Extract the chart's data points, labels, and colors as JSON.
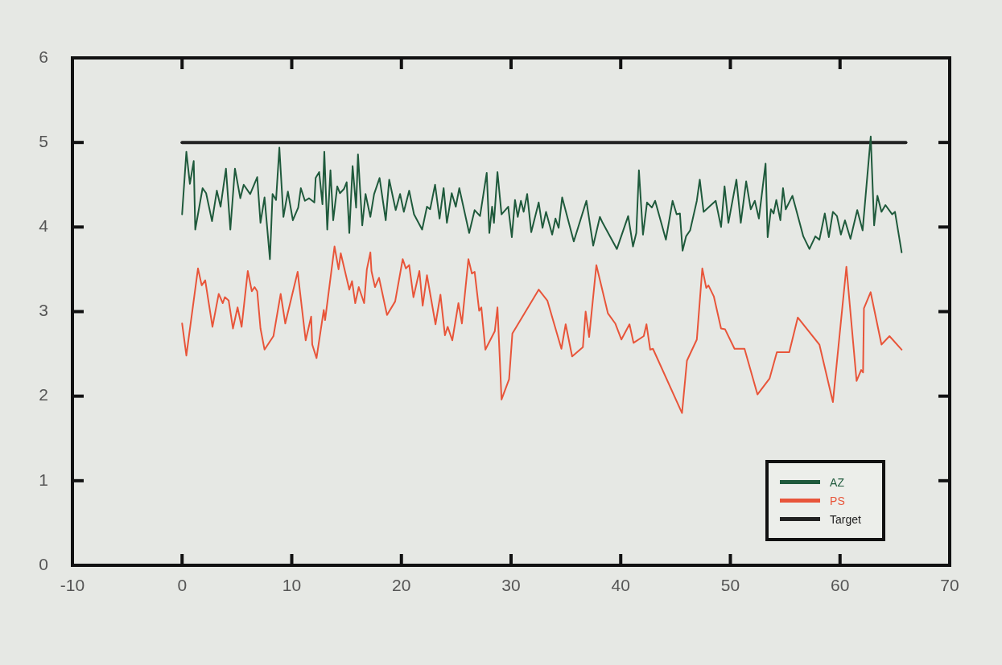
{
  "chart_data": {
    "type": "line",
    "xlim": [
      -10,
      70
    ],
    "xticks": [
      -10,
      0,
      10,
      20,
      30,
      40,
      50,
      60,
      70
    ],
    "ylim": [
      0,
      6
    ],
    "yticks": [
      0,
      1,
      2,
      3,
      4,
      5,
      6
    ],
    "grid": false,
    "legend": "bottom right",
    "marker": "none",
    "line_style": "solid",
    "series": [
      {
        "name": "AZ",
        "color": "#1f5a3c",
        "x": [
          0,
          0.39,
          0.71,
          1.06,
          1.2,
          1.87,
          2.19,
          2.73,
          3.17,
          3.51,
          4.0,
          4.4,
          4.82,
          5.31,
          5.62,
          6.21,
          6.85,
          7.15,
          7.52,
          8.01,
          8.25,
          8.57,
          8.87,
          9.24,
          9.65,
          10.1,
          10.59,
          10.83,
          11.2,
          11.57,
          12.06,
          12.18,
          12.5,
          12.8,
          12.97,
          13.24,
          13.53,
          13.78,
          14.15,
          14.4,
          14.76,
          15.01,
          15.25,
          15.55,
          15.87,
          16.04,
          16.43,
          16.73,
          17.17,
          17.51,
          18.01,
          18.57,
          18.89,
          19.48,
          19.88,
          20.22,
          20.71,
          21.15,
          21.89,
          22.33,
          22.62,
          23.07,
          23.48,
          23.85,
          24.15,
          24.59,
          24.96,
          25.28,
          26.18,
          26.68,
          27.17,
          27.78,
          28.02,
          28.27,
          28.44,
          28.76,
          29.13,
          29.74,
          30.07,
          30.36,
          30.61,
          30.9,
          31.15,
          31.47,
          31.84,
          32.52,
          32.87,
          33.19,
          33.75,
          34.05,
          34.34,
          34.66,
          35.72,
          36.87,
          37.49,
          38.1,
          38.35,
          39.65,
          40.68,
          41.12,
          41.42,
          41.66,
          42.03,
          42.4,
          42.84,
          43.14,
          44.12,
          44.73,
          45.1,
          45.4,
          45.64,
          45.96,
          46.33,
          46.94,
          47.21,
          47.56,
          48.66,
          49.15,
          49.47,
          49.82,
          50.55,
          50.95,
          51.44,
          51.86,
          52.23,
          52.6,
          53.21,
          53.4,
          53.7,
          53.94,
          54.19,
          54.56,
          54.8,
          55.05,
          55.66,
          56.65,
          57.21,
          57.75,
          58.12,
          58.61,
          58.98,
          59.35,
          59.72,
          60.08,
          60.45,
          60.95,
          61.57,
          62.06,
          62.8,
          63.11,
          63.41,
          63.78,
          64.14,
          64.76,
          65.01,
          65.62
        ],
        "values": [
          4.15,
          4.89,
          4.51,
          4.78,
          3.97,
          4.46,
          4.4,
          4.07,
          4.43,
          4.24,
          4.69,
          3.97,
          4.69,
          4.34,
          4.5,
          4.39,
          4.59,
          4.05,
          4.35,
          3.62,
          4.39,
          4.32,
          4.94,
          4.12,
          4.42,
          4.08,
          4.23,
          4.46,
          4.31,
          4.34,
          4.29,
          4.58,
          4.65,
          4.27,
          4.89,
          3.97,
          4.67,
          4.08,
          4.48,
          4.4,
          4.45,
          4.53,
          3.93,
          4.72,
          4.23,
          4.86,
          4.02,
          4.39,
          4.12,
          4.39,
          4.58,
          4.08,
          4.56,
          4.2,
          4.39,
          4.18,
          4.43,
          4.15,
          3.97,
          4.24,
          4.21,
          4.5,
          4.1,
          4.46,
          4.05,
          4.4,
          4.24,
          4.46,
          3.93,
          4.2,
          4.13,
          4.64,
          3.93,
          4.24,
          4.05,
          4.65,
          4.15,
          4.24,
          3.88,
          4.32,
          4.12,
          4.31,
          4.18,
          4.39,
          3.94,
          4.29,
          3.99,
          4.18,
          3.91,
          4.1,
          3.99,
          4.35,
          3.83,
          4.31,
          3.78,
          4.12,
          4.05,
          3.74,
          4.13,
          3.77,
          3.93,
          4.67,
          3.91,
          4.29,
          4.23,
          4.31,
          3.85,
          4.31,
          4.15,
          4.16,
          3.72,
          3.89,
          3.96,
          4.31,
          4.56,
          4.18,
          4.31,
          4.0,
          4.48,
          4.05,
          4.56,
          4.05,
          4.54,
          4.21,
          4.31,
          4.1,
          4.75,
          3.88,
          4.21,
          4.16,
          4.32,
          4.08,
          4.46,
          4.21,
          4.37,
          3.89,
          3.74,
          3.89,
          3.85,
          4.16,
          3.88,
          4.18,
          4.13,
          3.91,
          4.08,
          3.86,
          4.2,
          3.96,
          5.07,
          4.02,
          4.37,
          4.18,
          4.26,
          4.15,
          4.18,
          3.7
        ]
      },
      {
        "name": "PS",
        "color": "#e8553a",
        "x": [
          0,
          0.39,
          1.45,
          1.79,
          2.11,
          2.77,
          3.34,
          3.71,
          3.9,
          4.25,
          4.64,
          5.06,
          5.43,
          5.99,
          6.36,
          6.61,
          6.85,
          7.15,
          7.52,
          8.33,
          8.99,
          9.41,
          10.54,
          11.27,
          11.77,
          11.87,
          12.26,
          12.92,
          13.04,
          13.9,
          14.27,
          14.47,
          15.25,
          15.5,
          15.79,
          16.11,
          16.6,
          16.85,
          17.17,
          17.27,
          17.59,
          17.96,
          18.69,
          19.43,
          20.12,
          20.41,
          20.71,
          21.1,
          21.64,
          21.94,
          22.33,
          23.11,
          23.56,
          23.97,
          24.22,
          24.64,
          25.2,
          25.52,
          26.11,
          26.43,
          26.68,
          27.09,
          27.29,
          27.66,
          28.52,
          28.76,
          29.01,
          29.13,
          29.82,
          30.12,
          32.52,
          33.31,
          34.59,
          34.98,
          35.57,
          36.55,
          36.8,
          37.12,
          37.78,
          38.83,
          39.5,
          40.06,
          40.8,
          41.17,
          42.1,
          42.35,
          42.69,
          42.94,
          45.59,
          46.04,
          46.94,
          47.44,
          47.8,
          48.0,
          48.49,
          49.15,
          49.52,
          50.38,
          51.29,
          52.47,
          53.58,
          54.24,
          55.37,
          56.15,
          58.12,
          59.35,
          60.58,
          61.51,
          61.93,
          62.1,
          62.18,
          62.79,
          63.78,
          64.51,
          65.62
        ],
        "values": [
          2.86,
          2.48,
          3.51,
          3.31,
          3.37,
          2.82,
          3.21,
          3.1,
          3.17,
          3.13,
          2.8,
          3.05,
          2.82,
          3.48,
          3.24,
          3.29,
          3.24,
          2.8,
          2.55,
          2.71,
          3.21,
          2.86,
          3.47,
          2.66,
          2.94,
          2.61,
          2.45,
          3.02,
          2.9,
          3.77,
          3.5,
          3.69,
          3.26,
          3.36,
          3.1,
          3.29,
          3.1,
          3.5,
          3.7,
          3.48,
          3.29,
          3.4,
          2.96,
          3.12,
          3.62,
          3.51,
          3.55,
          3.17,
          3.48,
          3.07,
          3.43,
          2.85,
          3.2,
          2.72,
          2.82,
          2.66,
          3.1,
          2.86,
          3.62,
          3.45,
          3.47,
          3.01,
          3.05,
          2.55,
          2.77,
          3.05,
          2.33,
          1.96,
          2.2,
          2.74,
          3.26,
          3.13,
          2.56,
          2.85,
          2.47,
          2.58,
          3.0,
          2.7,
          3.55,
          2.98,
          2.86,
          2.67,
          2.85,
          2.63,
          2.71,
          2.85,
          2.55,
          2.56,
          1.8,
          2.42,
          2.67,
          3.51,
          3.28,
          3.31,
          3.18,
          2.8,
          2.79,
          2.56,
          2.56,
          2.02,
          2.21,
          2.52,
          2.52,
          2.93,
          2.61,
          1.93,
          3.53,
          2.18,
          2.31,
          2.28,
          3.04,
          3.23,
          2.61,
          2.71,
          2.55
        ]
      },
      {
        "name": "Target",
        "color": "#222222",
        "x": [
          0,
          66
        ],
        "values": [
          5,
          5
        ]
      }
    ]
  }
}
